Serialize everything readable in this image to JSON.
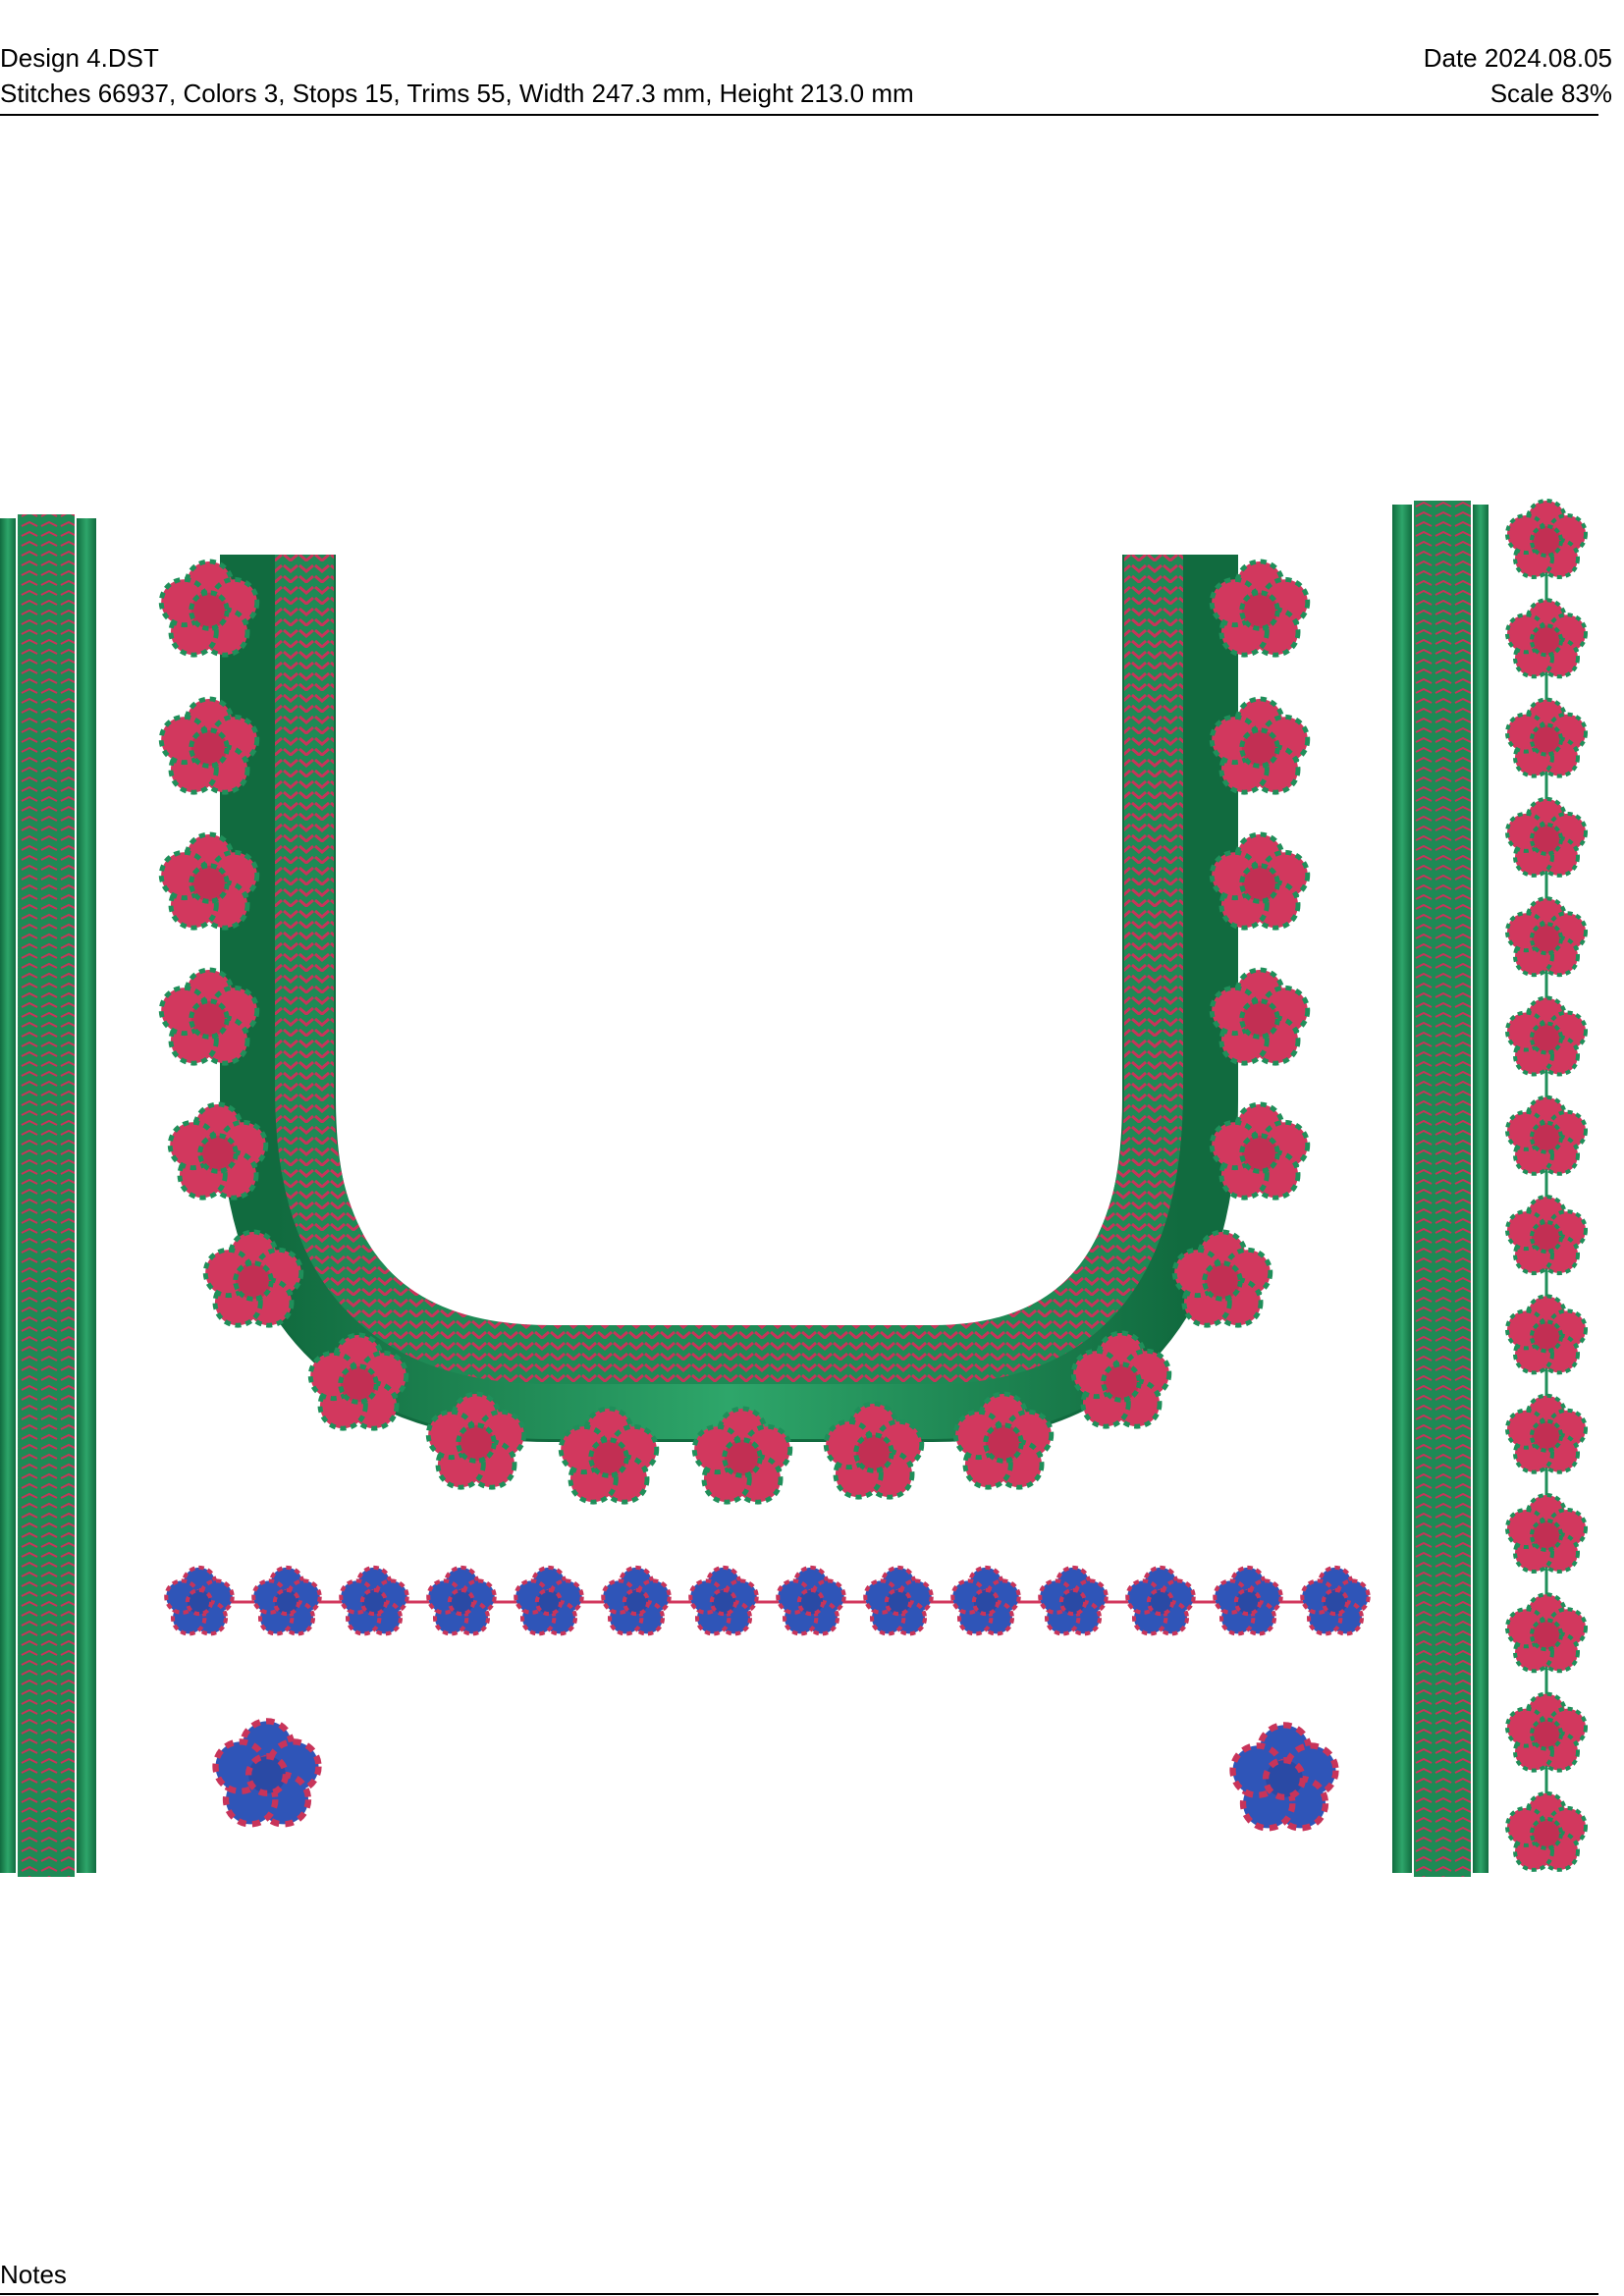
{
  "header": {
    "design_name": "Design 4.DST",
    "date": "Date 2024.08.05",
    "stats": "Stitches 66937, Colors 3, Stops 15, Trims 55, Width 247.3 mm, Height 213.0 mm",
    "scale": "Scale 83%"
  },
  "footer": {
    "notes_label": "Notes"
  },
  "thread_colors": {
    "green": "#1f8f5a",
    "green_dark": "#116b3f",
    "crimson": "#d2385e",
    "blue": "#2f55b8"
  },
  "design": {
    "motifs": [
      "left-border-strip",
      "neckline-u-border",
      "neckline-flowers",
      "blue-flower-chain",
      "single-blue-flowers",
      "right-border-strip",
      "right-flower-vine"
    ],
    "neck_flower_count": 19,
    "blue_chain_flower_count": 14,
    "right_vine_flower_count": 14,
    "single_blue_flower_count": 2
  }
}
